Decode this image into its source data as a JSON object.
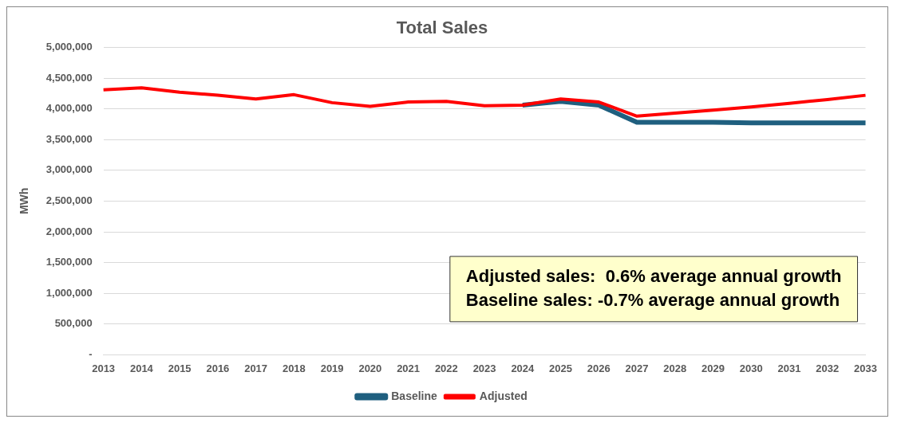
{
  "chart_data": {
    "type": "line",
    "title": "Total Sales",
    "ylabel": "MWh",
    "categories": [
      "2013",
      "2014",
      "2015",
      "2016",
      "2017",
      "2018",
      "2019",
      "2020",
      "2021",
      "2022",
      "2023",
      "2024",
      "2025",
      "2026",
      "2027",
      "2028",
      "2029",
      "2030",
      "2031",
      "2032",
      "2033"
    ],
    "series": [
      {
        "name": "Adjusted",
        "color": "#ff0000",
        "values": [
          4310000,
          4340000,
          4270000,
          4220000,
          4160000,
          4230000,
          4100000,
          4040000,
          4110000,
          4120000,
          4050000,
          4060000,
          4160000,
          4110000,
          3880000,
          3930000,
          3980000,
          4030000,
          4090000,
          4150000,
          4220000
        ]
      },
      {
        "name": "Baseline",
        "color": "#1f5f7f",
        "values": [
          null,
          null,
          null,
          null,
          null,
          null,
          null,
          null,
          null,
          null,
          null,
          4060000,
          4120000,
          4060000,
          3780000,
          3780000,
          3780000,
          3770000,
          3770000,
          3770000,
          3770000
        ]
      }
    ],
    "ylim": [
      0,
      5000000
    ],
    "yticks": [
      {
        "value": 0,
        "label": "-"
      },
      {
        "value": 500000,
        "label": "500,000"
      },
      {
        "value": 1000000,
        "label": "1,000,000"
      },
      {
        "value": 1500000,
        "label": "1,500,000"
      },
      {
        "value": 2000000,
        "label": "2,000,000"
      },
      {
        "value": 2500000,
        "label": "2,500,000"
      },
      {
        "value": 3000000,
        "label": "3,000,000"
      },
      {
        "value": 3500000,
        "label": "3,500,000"
      },
      {
        "value": 4000000,
        "label": "4,000,000"
      },
      {
        "value": 4500000,
        "label": "4,500,000"
      },
      {
        "value": 5000000,
        "label": "5,000,000"
      }
    ],
    "grid": "y",
    "legend": "bottom",
    "marker": "none",
    "line_style": "solid",
    "annotations": [
      "Adjusted sales:  0.6% average annual growth",
      "Baseline sales: -0.7% average annual growth"
    ]
  }
}
